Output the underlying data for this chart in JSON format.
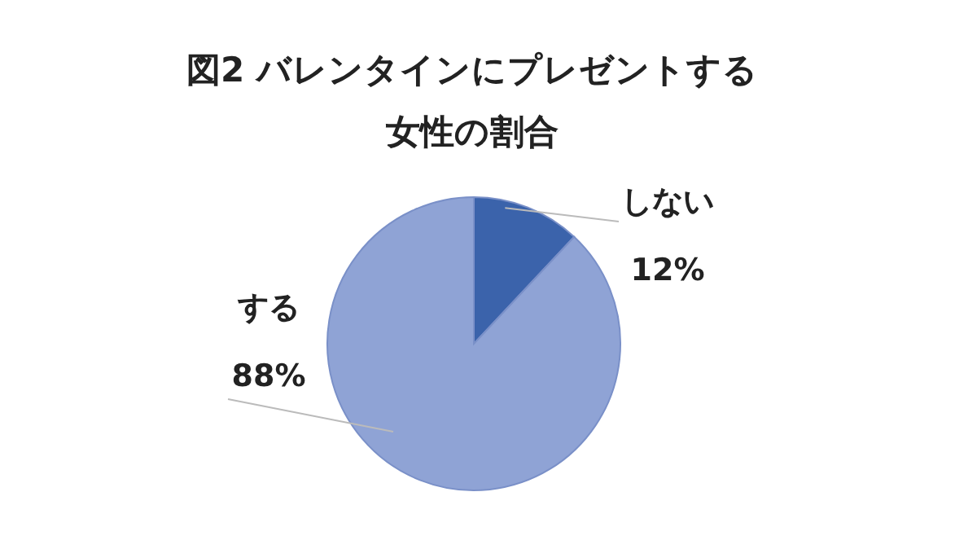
{
  "chart_data": {
    "type": "pie",
    "title": "図2 バレンタインにプレゼントする",
    "subtitle": "女性の割合",
    "categories": [
      "しない",
      "する"
    ],
    "values": [
      12,
      88
    ],
    "colors": [
      "#3b63ab",
      "#8fa3d5"
    ],
    "value_labels": [
      "12%",
      "88%"
    ]
  }
}
